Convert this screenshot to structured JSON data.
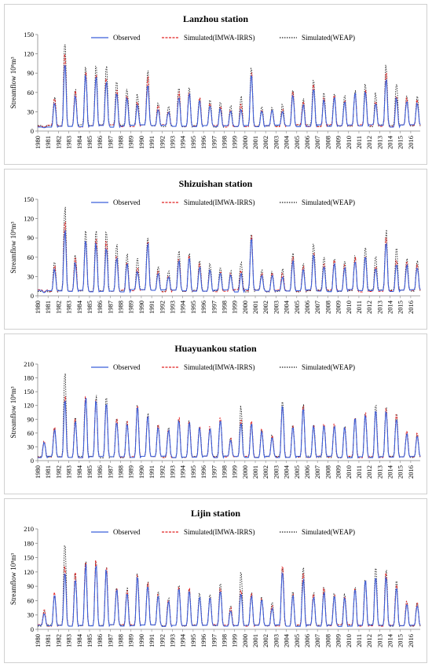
{
  "legend": {
    "observed": "Observed",
    "sim_irrs": "Simulated(IMWA-IRRS)",
    "sim_weap": "Simulated(WEAP)"
  },
  "colors": {
    "observed": "#3b5fd9",
    "sim_irrs": "#e02020",
    "sim_weap": "#222222"
  },
  "ylabel": "Streamflow  10⁸m³",
  "chart_data": [
    {
      "type": "line",
      "title": "Lanzhou station",
      "ylabel": "Streamflow  10⁸m³",
      "ylim": [
        0,
        150
      ],
      "yticks": [
        0,
        30,
        60,
        90,
        120,
        150
      ],
      "x": [
        "1980",
        "1981",
        "1982",
        "1983",
        "1984",
        "1985",
        "1986",
        "1987",
        "1988",
        "1989",
        "1990",
        "1991",
        "1992",
        "1993",
        "1994",
        "1995",
        "1996",
        "1997",
        "1998",
        "1999",
        "2000",
        "2001",
        "2002",
        "2003",
        "2004",
        "2005",
        "2006",
        "2007",
        "2008",
        "2009",
        "2010",
        "2011",
        "2012",
        "2013",
        "2014",
        "2015",
        "2016"
      ],
      "series": [
        {
          "name": "Observed",
          "values": [
            5,
            45,
            108,
            55,
            88,
            85,
            80,
            62,
            52,
            40,
            75,
            35,
            30,
            55,
            58,
            48,
            40,
            35,
            32,
            35,
            85,
            33,
            32,
            30,
            55,
            40,
            68,
            48,
            52,
            45,
            58,
            62,
            42,
            82,
            52,
            48,
            45
          ]
        },
        {
          "name": "Simulated(IMWA-IRRS)",
          "values": [
            6,
            50,
            120,
            62,
            92,
            90,
            85,
            65,
            55,
            45,
            85,
            40,
            33,
            62,
            62,
            52,
            42,
            38,
            35,
            42,
            92,
            35,
            35,
            35,
            62,
            45,
            72,
            52,
            55,
            48,
            60,
            65,
            48,
            90,
            55,
            52,
            48
          ]
        },
        {
          "name": "Simulated(WEAP)",
          "values": [
            6,
            55,
            143,
            67,
            100,
            103,
            105,
            80,
            67,
            58,
            98,
            45,
            40,
            70,
            68,
            55,
            50,
            45,
            40,
            55,
            97,
            40,
            38,
            42,
            67,
            50,
            82,
            60,
            60,
            55,
            63,
            75,
            60,
            102,
            75,
            58,
            55
          ]
        }
      ]
    },
    {
      "type": "line",
      "title": "Shizuishan station",
      "ylabel": "Streamflow  10⁸m³",
      "ylim": [
        0,
        150
      ],
      "yticks": [
        0,
        30,
        60,
        90,
        120,
        150
      ],
      "x": [
        "1980",
        "1981",
        "1982",
        "1983",
        "1984",
        "1985",
        "1986",
        "1987",
        "1988",
        "1989",
        "1990",
        "1991",
        "1992",
        "1993",
        "1994",
        "1995",
        "1996",
        "1997",
        "1998",
        "1999",
        "2000",
        "2001",
        "2002",
        "2003",
        "2004",
        "2005",
        "2006",
        "2007",
        "2008",
        "2009",
        "2010",
        "2011",
        "2012",
        "2013",
        "2014",
        "2015",
        "2016"
      ],
      "series": [
        {
          "name": "Observed",
          "values": [
            5,
            42,
            105,
            52,
            85,
            82,
            78,
            60,
            50,
            38,
            82,
            35,
            30,
            55,
            58,
            45,
            40,
            35,
            32,
            35,
            88,
            32,
            32,
            30,
            55,
            40,
            65,
            45,
            50,
            45,
            55,
            60,
            42,
            85,
            52,
            48,
            45
          ]
        },
        {
          "name": "Simulated(IMWA-IRRS)",
          "values": [
            6,
            48,
            118,
            60,
            90,
            88,
            85,
            65,
            55,
            42,
            88,
            40,
            33,
            60,
            62,
            50,
            42,
            38,
            35,
            40,
            95,
            35,
            35,
            35,
            60,
            45,
            70,
            50,
            55,
            48,
            60,
            65,
            48,
            92,
            55,
            52,
            48
          ]
        },
        {
          "name": "Simulated(WEAP)",
          "values": [
            6,
            55,
            143,
            67,
            100,
            103,
            105,
            80,
            67,
            58,
            98,
            45,
            40,
            70,
            68,
            55,
            50,
            45,
            40,
            55,
            97,
            40,
            38,
            42,
            67,
            50,
            82,
            60,
            60,
            55,
            63,
            75,
            60,
            102,
            75,
            58,
            55
          ]
        }
      ]
    },
    {
      "type": "line",
      "title": "Huayuankou station",
      "ylabel": "Streamflow  10⁸m³",
      "ylim": [
        0,
        210
      ],
      "yticks": [
        0,
        30,
        60,
        90,
        120,
        150,
        180,
        210
      ],
      "x": [
        "1980",
        "1981",
        "1982",
        "1983",
        "1984",
        "1985",
        "1986",
        "1987",
        "1988",
        "1989",
        "1990",
        "1991",
        "1992",
        "1993",
        "1994",
        "1995",
        "1996",
        "1997",
        "1998",
        "1999",
        "2000",
        "2001",
        "2002",
        "2003",
        "2004",
        "2005",
        "2006",
        "2007",
        "2008",
        "2009",
        "2010",
        "2011",
        "2012",
        "2013",
        "2014",
        "2015",
        "2016"
      ],
      "series": [
        {
          "name": "Observed",
          "values": [
            40,
            68,
            130,
            88,
            140,
            135,
            125,
            88,
            80,
            115,
            100,
            75,
            68,
            90,
            85,
            72,
            70,
            90,
            45,
            85,
            80,
            65,
            50,
            120,
            75,
            110,
            75,
            80,
            75,
            72,
            90,
            100,
            110,
            112,
            95,
            60,
            55
          ]
        },
        {
          "name": "Simulated(IMWA-IRRS)",
          "values": [
            45,
            75,
            140,
            92,
            145,
            140,
            130,
            92,
            85,
            120,
            105,
            78,
            72,
            95,
            90,
            75,
            75,
            95,
            48,
            90,
            85,
            70,
            55,
            125,
            80,
            118,
            80,
            85,
            80,
            75,
            95,
            105,
            115,
            115,
            100,
            65,
            60
          ]
        },
        {
          "name": "Simulated(WEAP)",
          "values": [
            42,
            72,
            190,
            95,
            150,
            142,
            138,
            95,
            88,
            122,
            105,
            80,
            75,
            92,
            88,
            78,
            72,
            95,
            50,
            120,
            82,
            68,
            58,
            128,
            78,
            122,
            82,
            82,
            78,
            78,
            92,
            102,
            120,
            118,
            102,
            62,
            58
          ]
        }
      ]
    },
    {
      "type": "line",
      "title": "Lijin station",
      "ylabel": "Streamflow  10⁸m³",
      "ylim": [
        0,
        210
      ],
      "yticks": [
        0,
        30,
        60,
        90,
        120,
        150,
        180,
        210
      ],
      "x": [
        "1980",
        "1981",
        "1982",
        "1983",
        "1984",
        "1985",
        "1986",
        "1987",
        "1988",
        "1989",
        "1990",
        "1991",
        "1992",
        "1993",
        "1994",
        "1995",
        "1996",
        "1997",
        "1998",
        "1999",
        "2000",
        "2001",
        "2002",
        "2003",
        "2004",
        "2005",
        "2006",
        "2007",
        "2008",
        "2009",
        "2010",
        "2011",
        "2012",
        "2013",
        "2014",
        "2015",
        "2016"
      ],
      "series": [
        {
          "name": "Observed",
          "values": [
            35,
            72,
            125,
            110,
            135,
            140,
            125,
            85,
            80,
            110,
            95,
            70,
            60,
            85,
            80,
            68,
            65,
            85,
            40,
            80,
            70,
            60,
            45,
            125,
            70,
            105,
            70,
            80,
            70,
            68,
            85,
            100,
            110,
            115,
            90,
            55,
            50
          ]
        },
        {
          "name": "Simulated(IMWA-IRRS)",
          "values": [
            40,
            78,
            135,
            118,
            142,
            145,
            130,
            90,
            85,
            115,
            100,
            75,
            65,
            90,
            85,
            72,
            70,
            90,
            45,
            85,
            75,
            65,
            50,
            130,
            75,
            115,
            75,
            85,
            75,
            72,
            90,
            105,
            115,
            120,
            95,
            60,
            55
          ]
        },
        {
          "name": "Simulated(WEAP)",
          "values": [
            38,
            75,
            190,
            120,
            150,
            148,
            138,
            92,
            88,
            120,
            105,
            78,
            68,
            92,
            88,
            75,
            72,
            95,
            50,
            120,
            78,
            68,
            55,
            132,
            78,
            128,
            80,
            88,
            78,
            75,
            92,
            105,
            128,
            130,
            100,
            62,
            58
          ]
        }
      ]
    }
  ]
}
